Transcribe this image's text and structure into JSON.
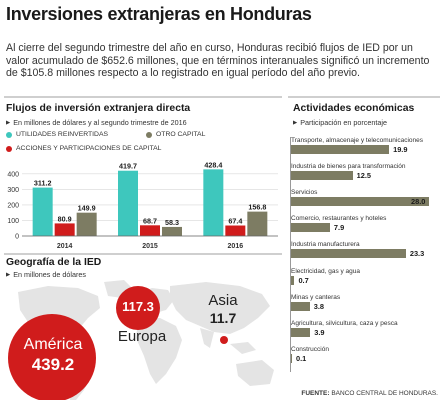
{
  "header": {
    "title": "Inversiones extranjeras en Honduras",
    "intro": "Al cierre del segundo trimestre del año en curso, Honduras recibió flujos de IED por un valor acumulado de $652.6 millones, que en términos interanuales significó un incremento de $105.8 millones respecto a lo registrado en igual período del año previo."
  },
  "flows": {
    "title": "Flujos de inversión extranjera directa",
    "subtitle": "En millones de dólares y al segundo trimestre de 2016",
    "legend": [
      {
        "name": "UTILIDADES REINVERTIDAS",
        "color": "#3ec7bd"
      },
      {
        "name": "OTRO CAPITAL",
        "color": "#7d7c63"
      },
      {
        "name": "ACCIONES Y PARTICIPACIONES DE CAPITAL",
        "color": "#d01c1c"
      }
    ]
  },
  "geo": {
    "title": "Geografía de la IED",
    "subtitle": "En millones de dólares",
    "regions": [
      {
        "name": "América",
        "value": "439.2",
        "color": "#d01c1c"
      },
      {
        "name": "Europa",
        "value": "117.3",
        "color": "#d01c1c"
      },
      {
        "name": "Asia",
        "value": "11.7",
        "color": "#d01c1c"
      }
    ]
  },
  "activities": {
    "title": "Actividades económicas",
    "subtitle": "Participación en porcentaje"
  },
  "source": {
    "label": "FUENTE:",
    "text": "BANCO CENTRAL DE HONDURAS."
  },
  "chart_data": [
    {
      "type": "bar",
      "title": "Flujos de inversión extranjera directa",
      "categories": [
        "2014",
        "2015",
        "2016"
      ],
      "series": [
        {
          "name": "UTILIDADES REINVERTIDAS",
          "values": [
            311.2,
            419.7,
            428.4
          ]
        },
        {
          "name": "ACCIONES Y PARTICIPACIONES DE CAPITAL",
          "values": [
            80.9,
            68.7,
            67.4
          ]
        },
        {
          "name": "OTRO CAPITAL",
          "values": [
            149.9,
            58.3,
            156.8
          ]
        }
      ],
      "yticks": [
        0,
        100,
        200,
        300,
        400
      ],
      "ylim": [
        0,
        450
      ]
    },
    {
      "type": "bar",
      "title": "Actividades económicas",
      "orientation": "horizontal",
      "categories": [
        "Transporte, almacenaje y telecomunicaciones",
        "Industria de bienes para transformación",
        "Servicios",
        "Comercio, restaurantes y hoteles",
        "Industria manufacturera",
        "Electricidad, gas y agua",
        "Minas y canteras",
        "Agricultura, silvicultura, caza y pesca",
        "Construcción"
      ],
      "values": [
        19.9,
        12.5,
        28.0,
        7.9,
        23.3,
        0.7,
        3.8,
        3.9,
        0.1
      ],
      "value_labels": [
        "19.9",
        "12.5",
        "28.0",
        "7.9",
        "23.3",
        "0.7",
        "3.8",
        "3.9",
        "0.1"
      ]
    }
  ]
}
